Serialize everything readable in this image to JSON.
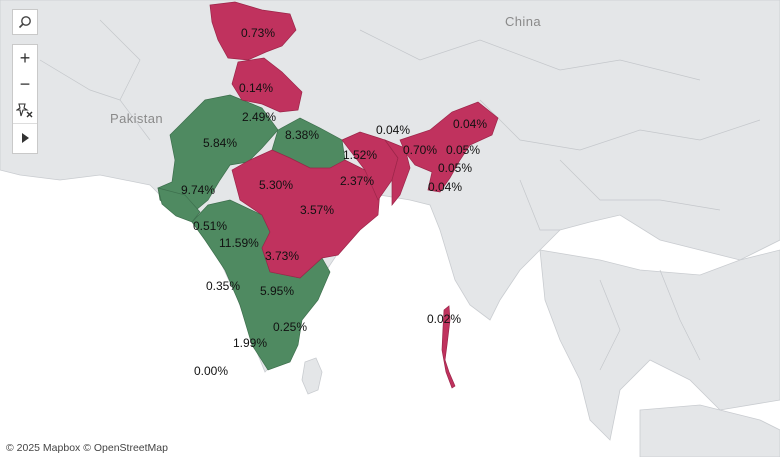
{
  "map": {
    "country_labels": {
      "china": "China",
      "pakistan": "Pakistan"
    },
    "attribution": "© 2025 Mapbox © OpenStreetMap",
    "colors": {
      "ocean": "#ffffff",
      "land": "#e3e5e7",
      "green_states": "#4f8a61",
      "red_states": "#c0325e"
    },
    "region_labels": [
      {
        "state": "Jammu & Kashmir",
        "value": "0.73%"
      },
      {
        "state": "Himachal Pradesh",
        "value": "0.14%"
      },
      {
        "state": "Haryana",
        "value": "2.49%"
      },
      {
        "state": "Uttar Pradesh",
        "value": "8.38%"
      },
      {
        "state": "Rajasthan",
        "value": "5.84%"
      },
      {
        "state": "Gujarat",
        "value": "9.74%"
      },
      {
        "state": "Madhya Pradesh",
        "value": "5.30%"
      },
      {
        "state": "Bihar",
        "value": "1.52%"
      },
      {
        "state": "Jharkhand",
        "value": "2.37%"
      },
      {
        "state": "Odisha",
        "value": "3.57%"
      },
      {
        "state": "Daman & Diu",
        "value": "0.51%"
      },
      {
        "state": "Maharashtra",
        "value": "11.59%"
      },
      {
        "state": "Telangana",
        "value": "3.73%"
      },
      {
        "state": "Goa",
        "value": "0.35%"
      },
      {
        "state": "Andhra Pradesh",
        "value": "5.95%"
      },
      {
        "state": "Puducherry",
        "value": "0.25%"
      },
      {
        "state": "Kerala",
        "value": "1.99%"
      },
      {
        "state": "Lakshadweep",
        "value": "0.00%"
      },
      {
        "state": "Sikkim",
        "value": "0.04%"
      },
      {
        "state": "Arunachal Pradesh",
        "value": "0.04%"
      },
      {
        "state": "Meghalaya",
        "value": "0.70%"
      },
      {
        "state": "Nagaland",
        "value": "0.05%"
      },
      {
        "state": "Manipur",
        "value": "0.05%"
      },
      {
        "state": "Mizoram",
        "value": "0.04%"
      },
      {
        "state": "Andaman & Nicobar",
        "value": "0.02%"
      }
    ]
  },
  "toolbar": {
    "search": "search-icon",
    "zoom_in": "+",
    "zoom_out": "−",
    "reset": "unpin-icon",
    "expand": "play-icon"
  }
}
